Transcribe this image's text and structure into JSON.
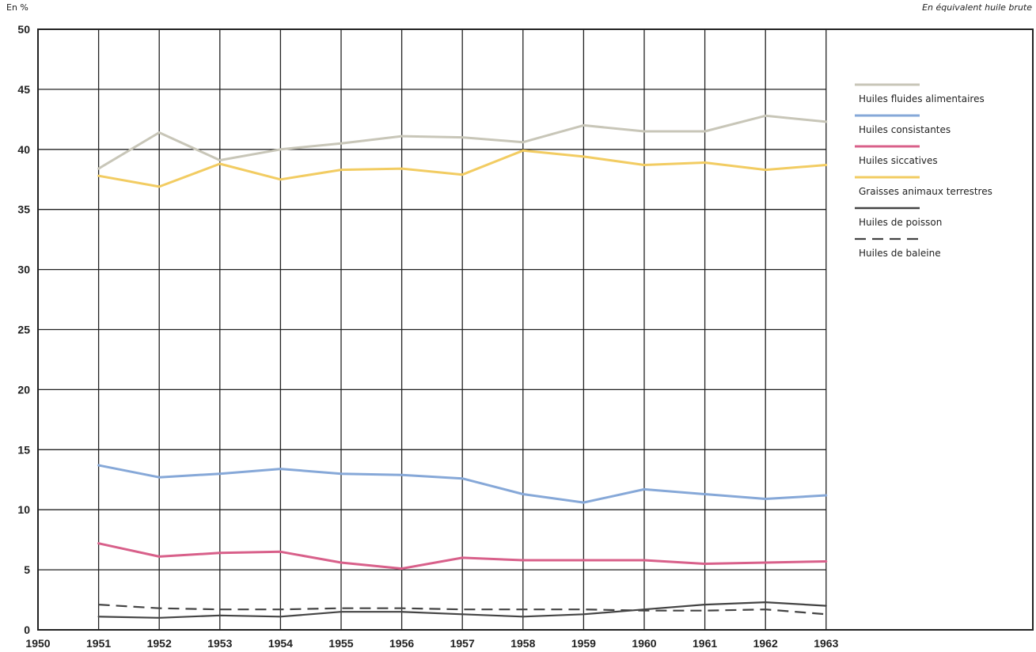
{
  "chart_data": {
    "type": "line",
    "title": "",
    "ylabel": "En %",
    "note": "En équivalent huile brute",
    "xlabel": "",
    "x": [
      1951,
      1952,
      1953,
      1954,
      1955,
      1956,
      1957,
      1958,
      1959,
      1960,
      1961,
      1962,
      1963
    ],
    "xlim": [
      1950,
      1963
    ],
    "ylim": [
      0,
      50
    ],
    "x_ticks": [
      "1950",
      "1951",
      "1952",
      "1953",
      "1954",
      "1955",
      "1956",
      "1957",
      "1958",
      "1959",
      "1960",
      "1961",
      "1962",
      "1963"
    ],
    "y_ticks": [
      "0",
      "5",
      "10",
      "15",
      "20",
      "25",
      "30",
      "35",
      "40",
      "45",
      "50"
    ],
    "grid": true,
    "legend_position": "right",
    "series": [
      {
        "name": "Huiles fluides alimentaires",
        "color": "#c8c6b8",
        "dash": false,
        "values": [
          38.4,
          41.4,
          39.1,
          40.0,
          40.5,
          41.1,
          41.0,
          40.6,
          42.0,
          41.5,
          41.5,
          42.8,
          42.3
        ]
      },
      {
        "name": "Huiles consistantes",
        "color": "#86a8d8",
        "dash": false,
        "values": [
          13.7,
          12.7,
          13.0,
          13.4,
          13.0,
          12.9,
          12.6,
          11.3,
          10.6,
          11.7,
          11.3,
          10.9,
          11.2
        ]
      },
      {
        "name": "Huiles siccatives",
        "color": "#d8608a",
        "dash": false,
        "values": [
          7.2,
          6.1,
          6.4,
          6.5,
          5.6,
          5.1,
          6.0,
          5.8,
          5.8,
          5.8,
          5.5,
          5.6,
          5.7
        ]
      },
      {
        "name": "Graisses animaux terrestres",
        "color": "#f2cc62",
        "dash": false,
        "values": [
          37.8,
          36.9,
          38.8,
          37.5,
          38.3,
          38.4,
          37.9,
          39.9,
          39.4,
          38.7,
          38.9,
          38.3,
          38.7
        ]
      },
      {
        "name": "Huiles de poisson",
        "color": "#444444",
        "dash": false,
        "values": [
          1.1,
          1.0,
          1.2,
          1.1,
          1.5,
          1.5,
          1.3,
          1.1,
          1.3,
          1.7,
          2.1,
          2.3,
          2.0
        ]
      },
      {
        "name": "Huiles de baleine",
        "color": "#444444",
        "dash": true,
        "values": [
          2.1,
          1.8,
          1.7,
          1.7,
          1.8,
          1.8,
          1.7,
          1.7,
          1.7,
          1.6,
          1.6,
          1.7,
          1.3
        ]
      }
    ]
  }
}
